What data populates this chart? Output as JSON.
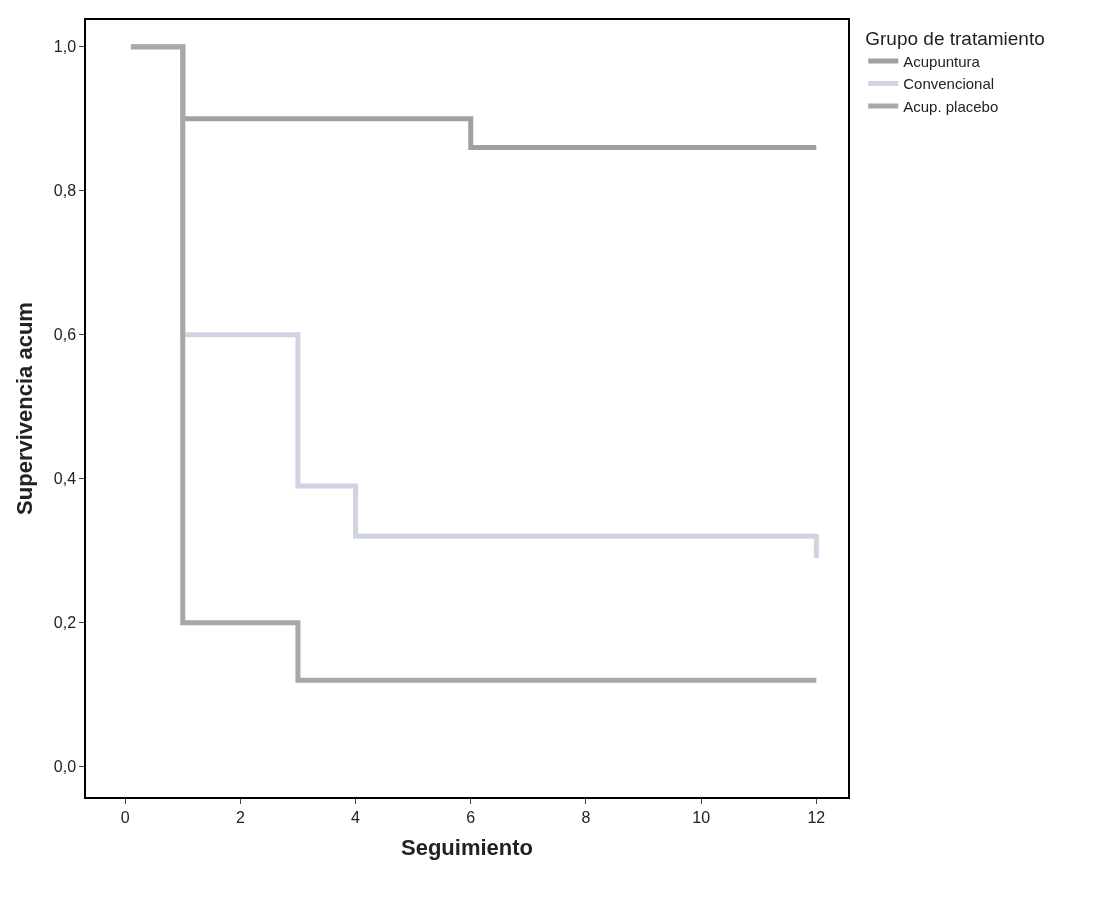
{
  "chart_data": {
    "type": "step",
    "xlabel": "Seguimiento",
    "ylabel": "Supervivencia acum",
    "legend_title": "Grupo de tratamiento",
    "xlim": [
      -0.68,
      12.55
    ],
    "xticks": [
      0,
      2,
      4,
      6,
      8,
      10,
      12
    ],
    "ylim": [
      -0.042,
      1.037
    ],
    "yticks": [
      {
        "value": 0,
        "label": "0,0"
      },
      {
        "value": 0.2,
        "label": "0,2"
      },
      {
        "value": 0.4,
        "label": "0,4"
      },
      {
        "value": 0.6,
        "label": "0,6"
      },
      {
        "value": 0.8,
        "label": "0,8"
      },
      {
        "value": 1,
        "label": "1,0"
      }
    ],
    "grid": false,
    "legend": "top right",
    "marker": "none",
    "line_style": "solid",
    "series": [
      {
        "name": "Acupuntura",
        "color": "#a0a0a0",
        "x": [
          0.1,
          1,
          6,
          12
        ],
        "values": [
          1.0,
          0.9,
          0.86,
          0.86
        ]
      },
      {
        "name": "Convencional",
        "color": "#d0d4e2",
        "x": [
          0.1,
          1,
          3,
          4,
          12
        ],
        "values": [
          1.0,
          0.6,
          0.39,
          0.32,
          0.29
        ]
      },
      {
        "name": "Acup. placebo",
        "color": "#a8a8a8",
        "x": [
          0.1,
          1,
          3,
          12
        ],
        "values": [
          1.0,
          0.2,
          0.12,
          0.12
        ]
      }
    ]
  }
}
